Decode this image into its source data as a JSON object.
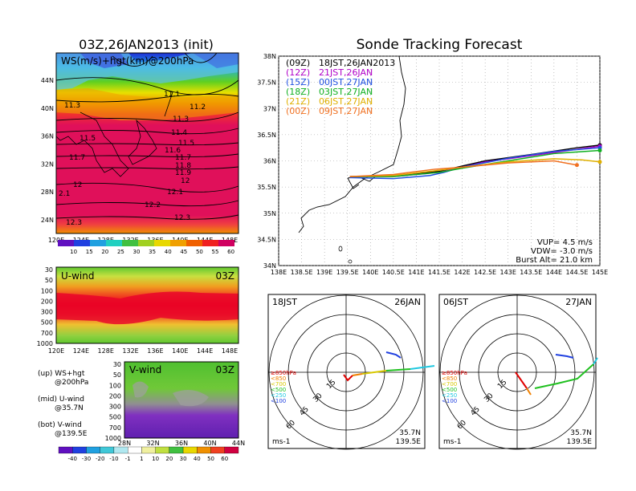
{
  "map_panel": {
    "title": "03Z,26JAN2013 (init)",
    "field_label": "WS(m/s)+hgt(km)@200hPa",
    "lat_ticks": [
      "44N",
      "40N",
      "36N",
      "32N",
      "28N",
      "24N"
    ],
    "lon_ticks": [
      "120E",
      "124E",
      "128E",
      "132E",
      "136E",
      "140E",
      "144E",
      "148E"
    ],
    "contour_labels": [
      "11.1",
      "11.2",
      "11.3",
      "11.3",
      "11.4",
      "11.5",
      "11.5",
      "11.6",
      "11.7",
      "11.7",
      "11.8",
      "11.9",
      "12",
      "12",
      "12.1",
      "12.2",
      "12.3",
      "12.3",
      "2.1"
    ],
    "colorbar_labels": [
      "10",
      "15",
      "20",
      "25",
      "30",
      "35",
      "40",
      "45",
      "50",
      "55",
      "60"
    ]
  },
  "uwind_panel": {
    "label": "U-wind",
    "time": "03Z",
    "p_ticks": [
      "30",
      "50",
      "100",
      "200",
      "300",
      "500",
      "700",
      "1000"
    ],
    "lon_ticks": [
      "120E",
      "124E",
      "128E",
      "132E",
      "136E",
      "140E",
      "144E",
      "148E"
    ]
  },
  "vwind_panel": {
    "label": "V-wind",
    "time": "03Z",
    "p_ticks": [
      "30",
      "50",
      "100",
      "200",
      "300",
      "500",
      "700",
      "1000"
    ],
    "lat_ticks": [
      "28N",
      "32N",
      "36N",
      "40N",
      "44N"
    ]
  },
  "legend_text": {
    "up": "(up) WS+hgt",
    "up2": "@200hPa",
    "mid": "(mid) U-wind",
    "mid2": "@35.7N",
    "bot": "(bot) V-wind",
    "bot2": "@139.5E"
  },
  "bottom_colorbar_labels": [
    "-40",
    "-30",
    "-20",
    "-10",
    "-1",
    "1",
    "10",
    "20",
    "30",
    "40",
    "50",
    "60"
  ],
  "tracking": {
    "title": "Sonde Tracking Forecast",
    "lat_ticks": [
      "38N",
      "37.5N",
      "37N",
      "36.5N",
      "36N",
      "35.5N",
      "35N",
      "34.5N",
      "34N"
    ],
    "lon_ticks": [
      "138E",
      "138.5E",
      "139E",
      "139.5E",
      "140E",
      "140.5E",
      "141E",
      "141.5E",
      "142E",
      "142.5E",
      "143E",
      "143.5E",
      "144E",
      "144.5E",
      "145E"
    ],
    "legend": [
      {
        "code": "(09Z)",
        "time": "18JST,26JAN2013",
        "color": "#000000"
      },
      {
        "code": "(12Z)",
        "time": "21JST,26JAN",
        "color": "#b000c8"
      },
      {
        "code": "(15Z)",
        "time": "00JST,27JAN",
        "color": "#2050e0"
      },
      {
        "code": "(18Z)",
        "time": "03JST,27JAN",
        "color": "#10b020"
      },
      {
        "code": "(21Z)",
        "time": "06JST,27JAN",
        "color": "#e0b000"
      },
      {
        "code": "(00Z)",
        "time": "09JST,27JAN",
        "color": "#f07020"
      }
    ],
    "vup": "VUP=  4.5  m/s",
    "vdw": "VDW=  -3.0  m/s",
    "burst": "Burst Alt=  21.0  km"
  },
  "hodo_left": {
    "time": "18JST",
    "date": "26JAN",
    "lat": "35.7N",
    "lon": "139.5E",
    "unit": "ms-1"
  },
  "hodo_right": {
    "time": "06JST",
    "date": "27JAN",
    "lat": "35.7N",
    "lon": "139.5E",
    "unit": "ms-1"
  },
  "hodo_rings": [
    "15",
    "30",
    "45",
    "60"
  ],
  "hodo_legend": [
    {
      "label": "≥850hPa",
      "color": "#e00000"
    },
    {
      "label": "<850",
      "color": "#f08000"
    },
    {
      "label": "<700",
      "color": "#d8c800"
    },
    {
      "label": "<500",
      "color": "#20c020"
    },
    {
      "label": "<250",
      "color": "#20c8e0"
    },
    {
      "label": "<100",
      "color": "#2040e0"
    }
  ],
  "chart_data": [
    {
      "type": "line",
      "title": "Sonde Tracking Forecast",
      "xlabel": "",
      "ylabel": "",
      "xlim": [
        138,
        145
      ],
      "ylim": [
        34,
        38
      ],
      "series": [
        {
          "name": "(09Z) 18JST,26JAN2013",
          "color": "#000000",
          "x": [
            139.55,
            140.5,
            141.5,
            142.0,
            142.5,
            143.5,
            144.5,
            145.0
          ],
          "y": [
            35.7,
            35.72,
            35.8,
            35.9,
            36.0,
            36.12,
            36.25,
            36.3
          ]
        },
        {
          "name": "(12Z) 21JST,26JAN",
          "color": "#b000c8",
          "x": [
            139.55,
            140.5,
            141.5,
            142.0,
            142.5,
            143.5,
            144.5,
            145.0
          ],
          "y": [
            35.7,
            35.7,
            35.78,
            35.88,
            35.98,
            36.1,
            36.22,
            36.28
          ]
        },
        {
          "name": "(15Z) 00JST,27JAN",
          "color": "#2050e0",
          "x": [
            139.55,
            140.5,
            141.3,
            141.6,
            142.0,
            143.0,
            144.0,
            145.0
          ],
          "y": [
            35.68,
            35.66,
            35.72,
            35.78,
            35.88,
            36.05,
            36.18,
            36.25
          ]
        },
        {
          "name": "(18Z) 03JST,27JAN",
          "color": "#10b020",
          "x": [
            139.55,
            140.5,
            141.5,
            142.0,
            143.0,
            144.0,
            145.0
          ],
          "y": [
            35.7,
            35.7,
            35.78,
            35.86,
            36.0,
            36.14,
            36.2
          ]
        },
        {
          "name": "(21Z) 06JST,27JAN",
          "color": "#e0b000",
          "x": [
            139.55,
            140.5,
            141.5,
            142.0,
            143.0,
            144.0,
            144.6,
            145.0
          ],
          "y": [
            35.7,
            35.72,
            35.82,
            35.88,
            35.98,
            36.04,
            36.02,
            35.98
          ]
        },
        {
          "name": "(00Z) 09JST,27JAN",
          "color": "#f07020",
          "x": [
            139.55,
            140.5,
            141.4,
            142.0,
            143.0,
            144.0,
            144.5
          ],
          "y": [
            35.7,
            35.74,
            35.84,
            35.88,
            35.96,
            36.0,
            35.92
          ]
        }
      ]
    }
  ]
}
